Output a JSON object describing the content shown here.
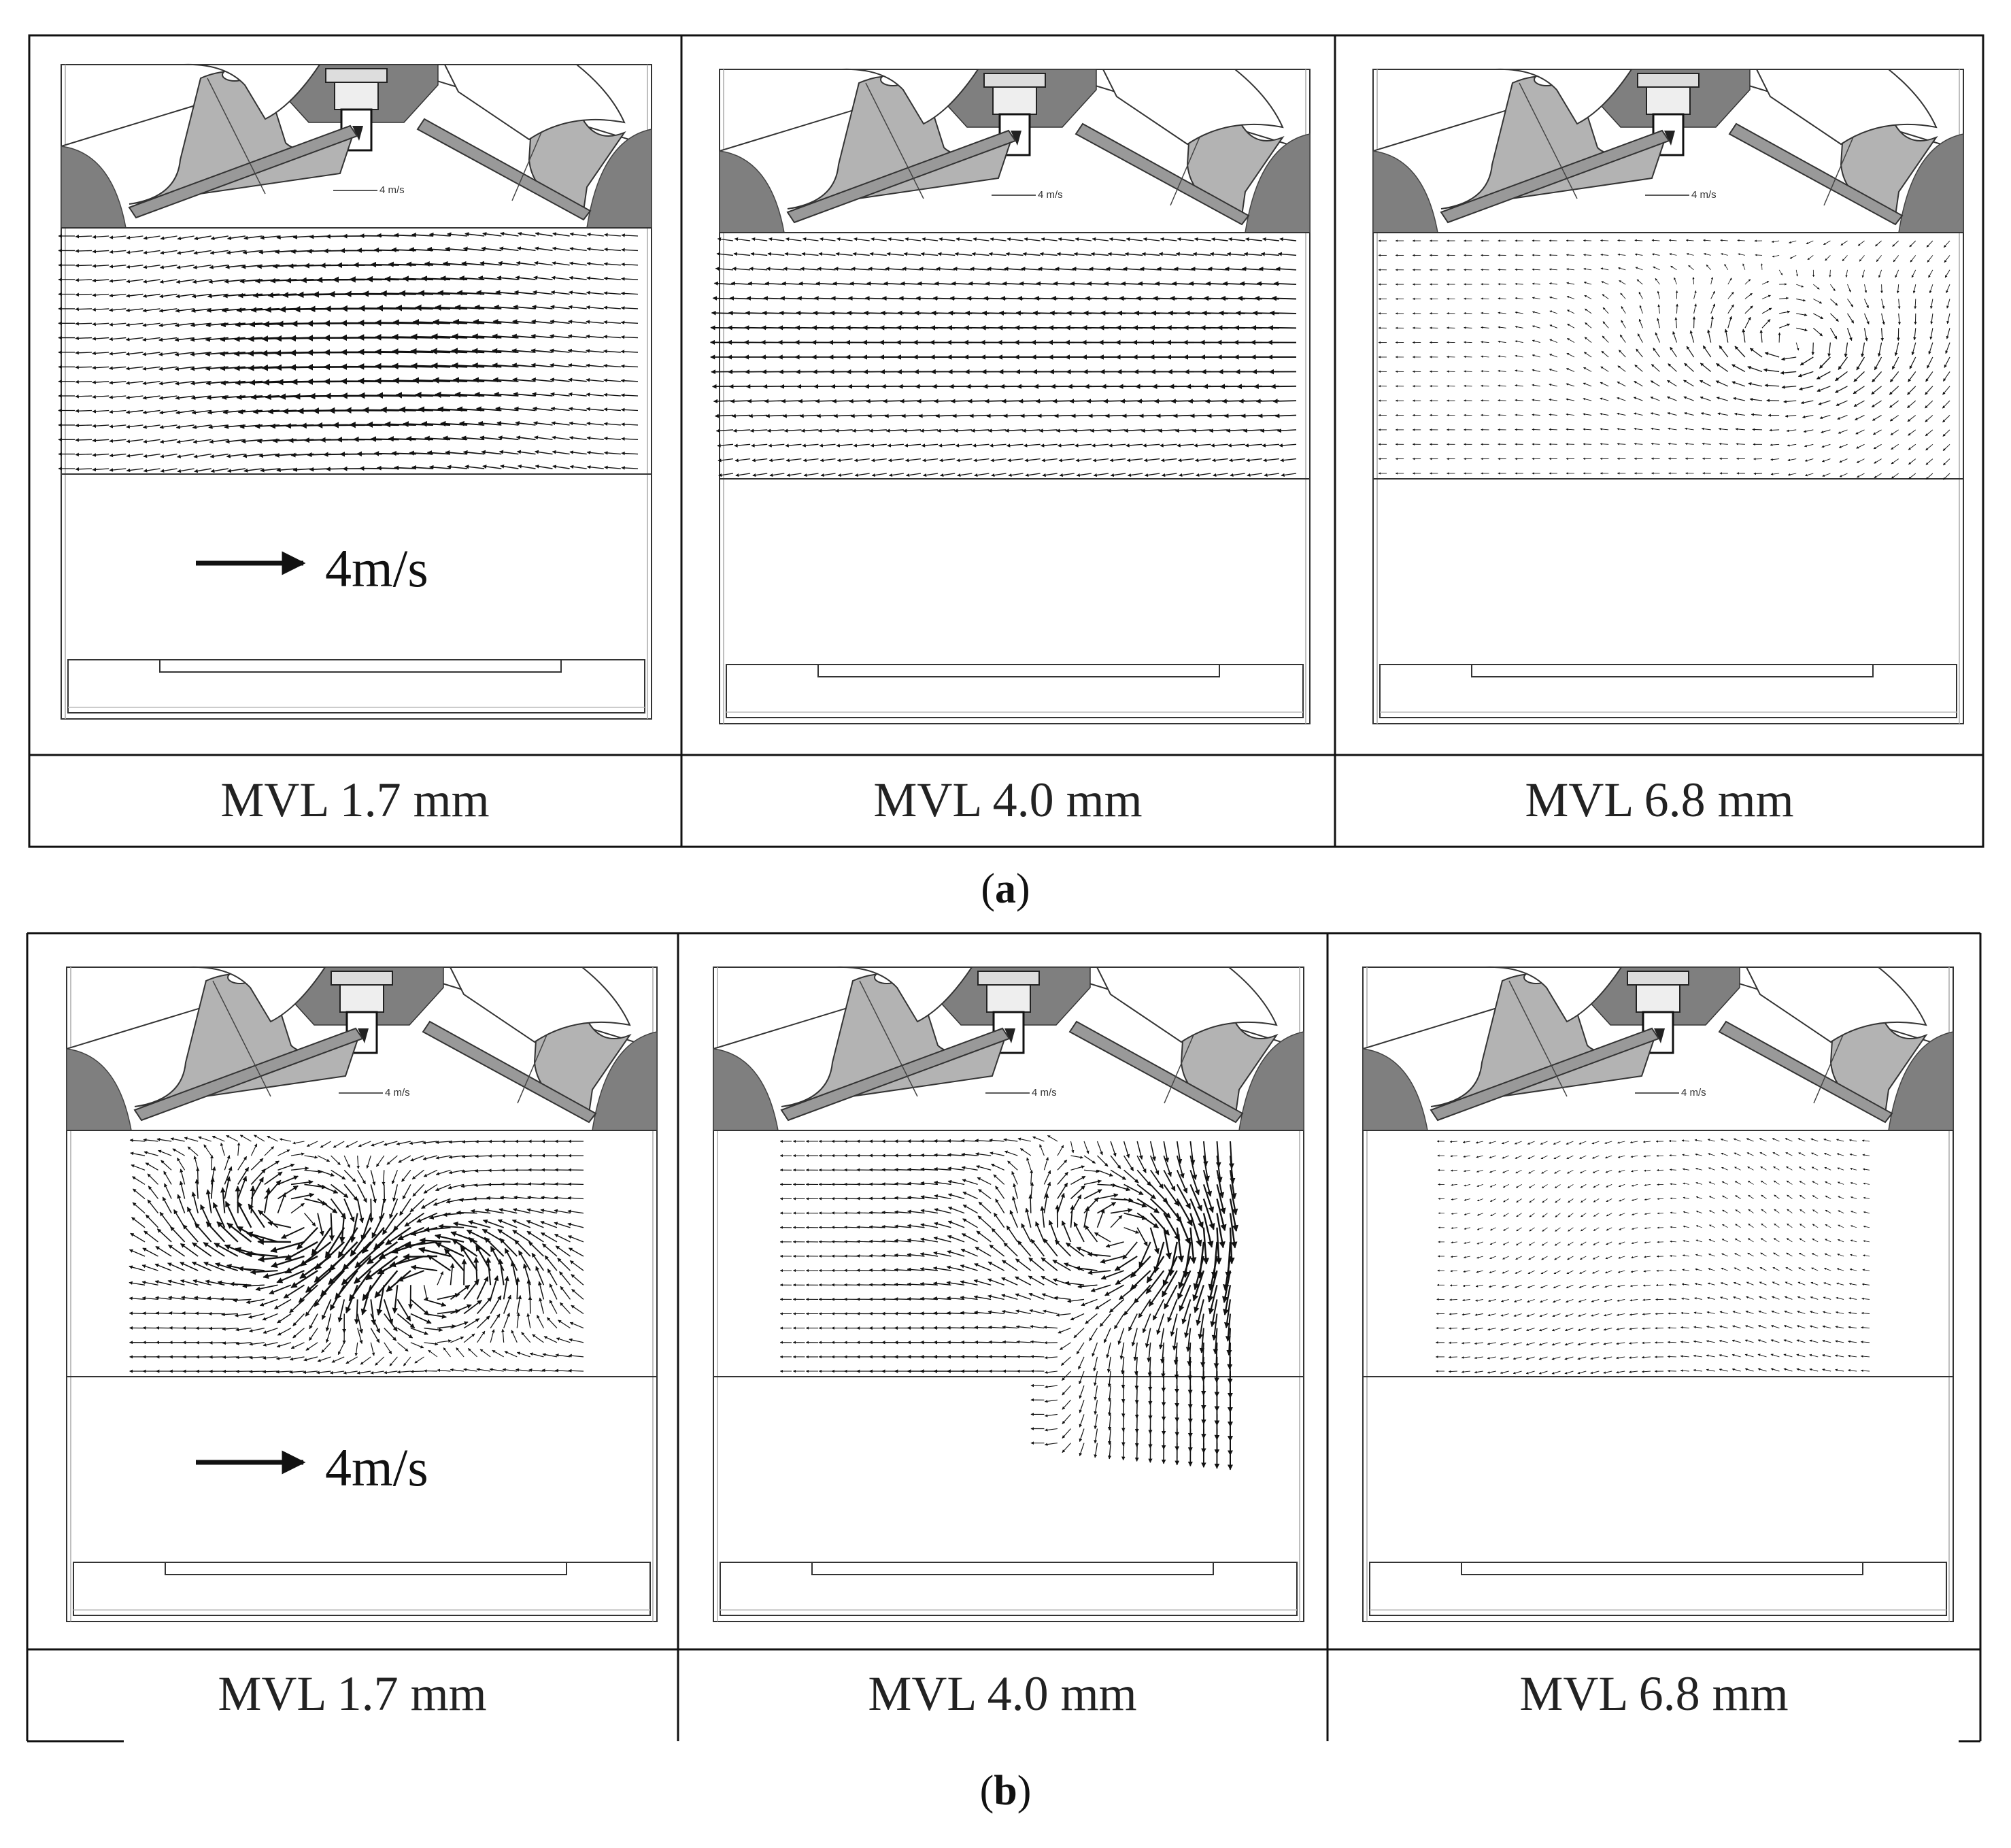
{
  "panels": [
    {
      "label": "a",
      "cells": [
        {
          "mvl": "MVL 1.7 mm",
          "pattern": "tumble-center-left",
          "intensity": 1.0,
          "large_scale_label": "4m/s",
          "small_scale_label": "4 m/s"
        },
        {
          "mvl": "MVL 4.0 mm",
          "pattern": "uniform-leftward",
          "intensity": 0.75,
          "large_scale_label": "",
          "small_scale_label": "4 m/s"
        },
        {
          "mvl": "MVL 6.8 mm",
          "pattern": "weak-right-vortex",
          "intensity": 0.55,
          "large_scale_label": "",
          "small_scale_label": "4 m/s"
        }
      ]
    },
    {
      "label": "b",
      "cells": [
        {
          "mvl": "MVL 1.7 mm",
          "pattern": "double-vortex",
          "intensity": 1.0,
          "large_scale_label": "4m/s",
          "small_scale_label": "4 m/s"
        },
        {
          "mvl": "MVL 4.0 mm",
          "pattern": "strong-downward-right",
          "intensity": 1.0,
          "large_scale_label": "",
          "small_scale_label": "4 m/s"
        },
        {
          "mvl": "MVL 6.8 mm",
          "pattern": "weak-uniform",
          "intensity": 0.4,
          "large_scale_label": "",
          "small_scale_label": "4 m/s"
        }
      ]
    }
  ],
  "colors": {
    "valve_fill": "#b3b3b3",
    "head_fill": "#7f7f7f",
    "arrow": "#111111",
    "line": "#333333"
  }
}
